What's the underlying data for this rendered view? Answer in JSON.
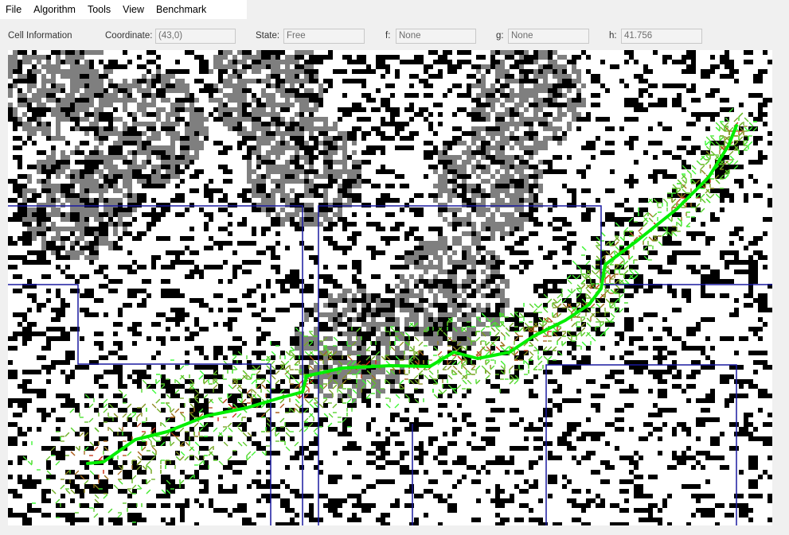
{
  "menu": {
    "items": [
      "File",
      "Algorithm",
      "Tools",
      "View",
      "Benchmark"
    ]
  },
  "cell_info": {
    "title": "Cell Information",
    "coordinate_label": "Coordinate:",
    "coordinate_value": "(43,0)",
    "state_label": "State:",
    "state_value": "Free",
    "f_label": "f:",
    "f_value": "None",
    "g_label": "g:",
    "g_value": "None",
    "h_label": "h:",
    "h_value": "41.756"
  },
  "colors": {
    "free": "#ffffff",
    "blocked": "#000000",
    "hard_to_traverse": "#7f7f7f",
    "highway": "#1a1aa0",
    "path": "#00ee00",
    "explored_low": "#33ff33",
    "explored_mid": "#8a8a1e",
    "explored_high": "#e01010"
  }
}
